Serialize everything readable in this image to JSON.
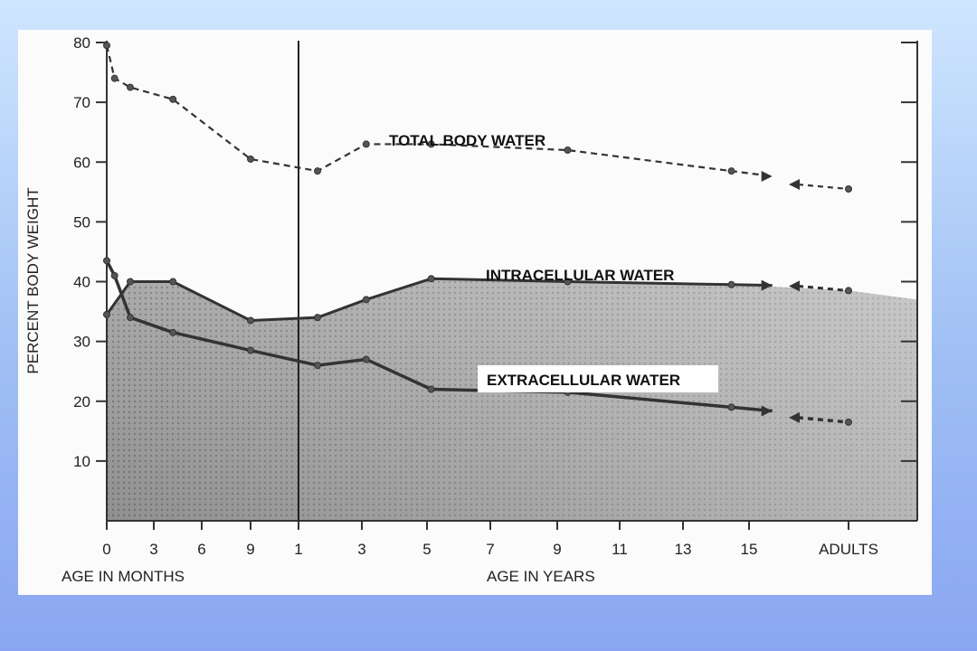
{
  "chart_data": {
    "type": "line",
    "ylabel": "PERCENT BODY WEIGHT",
    "yticks": [
      10,
      20,
      30,
      40,
      50,
      60,
      70,
      80
    ],
    "ylim": [
      0,
      80
    ],
    "x_axis_titles": [
      "AGE IN MONTHS",
      "AGE IN YEARS"
    ],
    "x_tick_labels": [
      "0",
      "3",
      "6",
      "9",
      "1",
      "3",
      "5",
      "7",
      "9",
      "11",
      "13",
      "15",
      "ADULTS"
    ],
    "x_tick_positions": [
      0,
      3,
      6,
      9,
      12,
      15,
      18,
      21,
      24,
      27,
      30,
      33,
      36
    ],
    "series": [
      {
        "name": "TOTAL BODY WATER",
        "style": "dashed",
        "x": [
          0,
          0.5,
          1.5,
          4.2,
          9,
          12.9,
          15.2,
          18.2,
          24.5,
          32.2,
          36
        ],
        "y": [
          79.5,
          74,
          72.5,
          70.5,
          60.5,
          58.5,
          63,
          63,
          62,
          58.5,
          55.5
        ]
      },
      {
        "name": "INTRACELLULAR WATER",
        "style": "solid",
        "x": [
          0,
          1.5,
          4.2,
          9,
          12.9,
          15.2,
          18.2,
          24.5,
          32.2,
          36
        ],
        "y": [
          34.5,
          40,
          40,
          33.5,
          34,
          37,
          40.5,
          40,
          39.5,
          38.5
        ]
      },
      {
        "name": "EXTRACELLULAR WATER",
        "style": "solid-to-dashed",
        "x": [
          0,
          0.5,
          1.5,
          4.2,
          9,
          12.9,
          15.2,
          18.2,
          24.5,
          32.2,
          36
        ],
        "y": [
          43.5,
          41,
          34,
          31.5,
          28.5,
          26,
          27,
          22,
          21.5,
          19,
          16.5
        ]
      }
    ],
    "grid": false,
    "legend": "inline labels"
  }
}
